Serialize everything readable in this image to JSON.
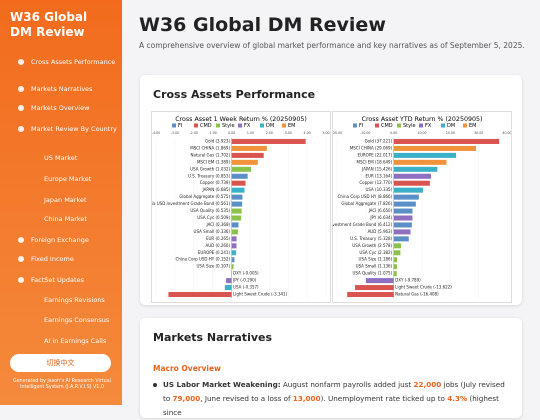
{
  "sidebar": {
    "title": "W36 Global DM Review",
    "nav": [
      "Cross Assets Performance",
      "Markets Narratives",
      "Markets Overview",
      "Market Review By Country",
      "US Market",
      "Europe Market",
      "Japan Market",
      "China Market",
      "Foreign Exchange",
      "Fixed Income",
      "FactSet Updates",
      "Earnings Revisions",
      "Earnings Consensus",
      "AI in Earnings Calls"
    ],
    "button": "切换中文",
    "footer": "Generated by Jason's AI Research Virtual Intelligent System (J.A.R.V.I.S) V1.0"
  },
  "header": {
    "title": "W36 Global DM Review",
    "subtitle": "A comprehensive overview of global market performance and key narratives as of September 5, 2025."
  },
  "sections": [
    {
      "title": "Cross Assets Performance"
    },
    {
      "title": "Markets Narratives",
      "subtitle": "Macro Overview",
      "paragraph": [
        {
          "text": "US Labor Market Weakening:",
          "style": "bold"
        },
        {
          "text": " August nonfarm payrolls added just ",
          "style": "plain"
        },
        {
          "text": "22,000",
          "style": "num"
        },
        {
          "text": " jobs (July revised to ",
          "style": "plain"
        },
        {
          "text": "79,000",
          "style": "num"
        },
        {
          "text": ", June revised to a loss of ",
          "style": "plain"
        },
        {
          "text": "13,000",
          "style": "num"
        },
        {
          "text": "). Unemployment rate ticked up to ",
          "style": "plain"
        },
        {
          "text": "4.3%",
          "style": "num"
        },
        {
          "text": " (highest since",
          "style": "plain"
        }
      ]
    }
  ],
  "chart_data": [
    {
      "type": "barh",
      "title": "Cross Asset 1 Week Return % (20250905)",
      "legend": [
        {
          "name": "FI",
          "color": "#5b8fc7"
        },
        {
          "name": "CMD",
          "color": "#d9534f"
        },
        {
          "name": "Style",
          "color": "#8bc34a"
        },
        {
          "name": "FX",
          "color": "#8e6fc1"
        },
        {
          "name": "DM",
          "color": "#3bb0c9"
        },
        {
          "name": "EM",
          "color": "#f0933a"
        }
      ],
      "categories": [
        "Gold (3.923)",
        "MSCI CHINA (1.869)",
        "Natural Gas (1.702)",
        "MSCI EM (1.389)",
        "USA Growth (1.032)",
        "U.S. Treasury (0.853)",
        "Copper (0.739)",
        "JAPAN (0.685)",
        "Global Aggregate (0.575)",
        "Asia USD Investment Grade Bond (0.561)",
        "USA Quality (0.535)",
        "USA Cyc (0.509)",
        "JACI (0.368)",
        "USA Small (0.336)",
        "EUR (0.265)",
        "AUD (0.260)",
        "EUROPE (0.241)",
        "China Corp USD HY (0.152)",
        "USA Size (0.107)",
        "DXY (-0.005)",
        "JPY (-0.290)",
        "USA (-0.357)",
        "Light Sweet Crude (-3.341)"
      ],
      "values": [
        3.923,
        1.869,
        1.702,
        1.389,
        1.032,
        0.853,
        0.739,
        0.685,
        0.575,
        0.561,
        0.535,
        0.509,
        0.368,
        0.336,
        0.265,
        0.26,
        0.241,
        0.152,
        0.107,
        -0.005,
        -0.29,
        -0.357,
        -3.341
      ],
      "groups": [
        1,
        5,
        1,
        5,
        2,
        0,
        1,
        4,
        0,
        0,
        2,
        2,
        0,
        2,
        3,
        3,
        4,
        0,
        2,
        3,
        3,
        4,
        1
      ],
      "xlim": [
        -4,
        5
      ],
      "xticks": [
        {
          "value": -4,
          "label": "-4.00"
        },
        {
          "value": -3,
          "label": "-3.00"
        },
        {
          "value": -2,
          "label": "-2.00"
        },
        {
          "value": -1,
          "label": "-1.00"
        },
        {
          "value": 0,
          "label": "0.00"
        },
        {
          "value": 1,
          "label": "1.00"
        },
        {
          "value": 2,
          "label": "2.00"
        },
        {
          "value": 3,
          "label": "3.00"
        },
        {
          "value": 4,
          "label": "4.00"
        },
        {
          "value": 5,
          "label": "5.00"
        }
      ]
    },
    {
      "type": "barh",
      "title": "Cross Asset YTD Return % (20250905)",
      "legend": [
        {
          "name": "FI",
          "color": "#5b8fc7"
        },
        {
          "name": "CMD",
          "color": "#d9534f"
        },
        {
          "name": "Style",
          "color": "#8bc34a"
        },
        {
          "name": "FX",
          "color": "#8e6fc1"
        },
        {
          "name": "DM",
          "color": "#3bb0c9"
        },
        {
          "name": "EM",
          "color": "#f0933a"
        }
      ],
      "categories": [
        "Gold (37.221)",
        "MSCI CHINA (29.069)",
        "EUROPE (22.017)",
        "MSCI EM (18.649)",
        "JAPAN (15.426)",
        "EUR (13.164)",
        "Copper (12.770)",
        "USA (10.335)",
        "China Corp USD HY (8.866)",
        "Global Aggregate (7.826)",
        "JACI (6.650)",
        "JPY (6.634)",
        "Asia USD Investment Grade Bond (6.412)",
        "AUD (5.963)",
        "U.S. Treasury (5.328)",
        "USA Growth (2.578)",
        "USA Cyc (2.382)",
        "USA Size (1.186)",
        "USA Small (1.136)",
        "USA Quality (1.075)",
        "DXY (-9.789)",
        "Light Sweet Crude (-13.622)",
        "Natural Gas (-16.408)"
      ],
      "values": [
        37.221,
        29.069,
        22.017,
        18.649,
        15.426,
        13.164,
        12.77,
        10.335,
        8.866,
        7.826,
        6.65,
        6.634,
        6.412,
        5.963,
        5.328,
        2.578,
        2.382,
        1.186,
        1.136,
        1.075,
        -9.789,
        -13.622,
        -16.408
      ],
      "groups": [
        1,
        5,
        4,
        5,
        4,
        3,
        1,
        4,
        0,
        0,
        0,
        3,
        0,
        3,
        0,
        2,
        2,
        2,
        2,
        2,
        3,
        1,
        1
      ],
      "xlim": [
        -20,
        40
      ],
      "xticks": [
        {
          "value": -20,
          "label": "-20.00"
        },
        {
          "value": -10,
          "label": "-10.00"
        },
        {
          "value": 0,
          "label": "0.00"
        },
        {
          "value": 10,
          "label": "10.00"
        },
        {
          "value": 20,
          "label": "20.00"
        },
        {
          "value": 30,
          "label": "30.00"
        },
        {
          "value": 40,
          "label": "40.00"
        }
      ]
    }
  ]
}
